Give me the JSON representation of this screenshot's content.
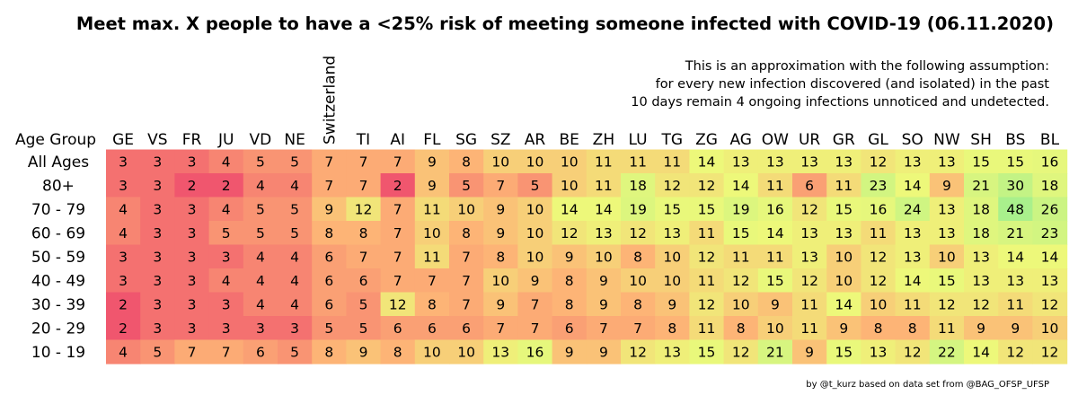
{
  "chart_data": {
    "type": "heatmap",
    "title": "Meet max. X people to have a <25% risk of meeting someone infected with COVID-19 (06.11.2020)",
    "note_lines": [
      "This is an approximation with the following assumption:",
      "for every new infection discovered (and isolated) in the past",
      "10 days remain 4 ongoing infections unnoticed and undetected."
    ],
    "row_header": "Age Group",
    "columns": [
      "GE",
      "VS",
      "FR",
      "JU",
      "VD",
      "NE",
      "Switzerland",
      "TI",
      "AI",
      "FL",
      "SG",
      "SZ",
      "AR",
      "BE",
      "ZH",
      "LU",
      "TG",
      "ZG",
      "AG",
      "OW",
      "UR",
      "GR",
      "GL",
      "SO",
      "NW",
      "SH",
      "BS",
      "BL"
    ],
    "rows": [
      "All Ages",
      "80+",
      "70 - 79",
      "60 - 69",
      "50 - 59",
      "40 - 49",
      "30 - 39",
      "20 - 29",
      "10 - 19"
    ],
    "values": [
      [
        3,
        3,
        3,
        4,
        5,
        5,
        7,
        7,
        7,
        9,
        8,
        10,
        10,
        10,
        11,
        11,
        11,
        14,
        13,
        13,
        13,
        13,
        12,
        13,
        13,
        15,
        15,
        16
      ],
      [
        3,
        3,
        2,
        2,
        4,
        4,
        7,
        7,
        2,
        9,
        5,
        7,
        5,
        10,
        11,
        18,
        12,
        12,
        14,
        11,
        6,
        11,
        23,
        14,
        9,
        21,
        30,
        18
      ],
      [
        4,
        3,
        3,
        4,
        5,
        5,
        9,
        12,
        7,
        11,
        10,
        9,
        10,
        14,
        14,
        19,
        15,
        15,
        19,
        16,
        12,
        15,
        16,
        24,
        13,
        18,
        48,
        26
      ],
      [
        4,
        3,
        3,
        5,
        5,
        5,
        8,
        8,
        7,
        10,
        8,
        9,
        10,
        12,
        13,
        12,
        13,
        11,
        15,
        14,
        13,
        13,
        11,
        13,
        13,
        18,
        21,
        23
      ],
      [
        3,
        3,
        3,
        3,
        4,
        4,
        6,
        7,
        7,
        11,
        7,
        8,
        10,
        9,
        10,
        8,
        10,
        12,
        11,
        11,
        13,
        10,
        12,
        13,
        10,
        13,
        14,
        14
      ],
      [
        3,
        3,
        3,
        4,
        4,
        4,
        6,
        6,
        7,
        7,
        7,
        10,
        9,
        8,
        9,
        10,
        10,
        11,
        12,
        15,
        12,
        10,
        12,
        14,
        15,
        13,
        13,
        13
      ],
      [
        2,
        3,
        3,
        3,
        4,
        4,
        6,
        5,
        12,
        8,
        7,
        9,
        7,
        8,
        9,
        8,
        9,
        12,
        10,
        9,
        11,
        14,
        10,
        11,
        12,
        12,
        11,
        12
      ],
      [
        2,
        3,
        3,
        3,
        3,
        3,
        5,
        5,
        6,
        6,
        6,
        7,
        7,
        6,
        7,
        7,
        8,
        11,
        8,
        10,
        11,
        9,
        8,
        8,
        11,
        9,
        9,
        10
      ],
      [
        4,
        5,
        7,
        7,
        6,
        5,
        8,
        9,
        8,
        10,
        10,
        13,
        16,
        9,
        9,
        12,
        13,
        15,
        12,
        21,
        9,
        15,
        13,
        12,
        22,
        14,
        12,
        12
      ]
    ],
    "color_scale": {
      "low": "#f0566e",
      "mid": "#fdb476",
      "high": "#edf87a",
      "max": "#a9f08c"
    },
    "credit": "by @t_kurz based on data set from @BAG_OFSP_UFSP"
  }
}
